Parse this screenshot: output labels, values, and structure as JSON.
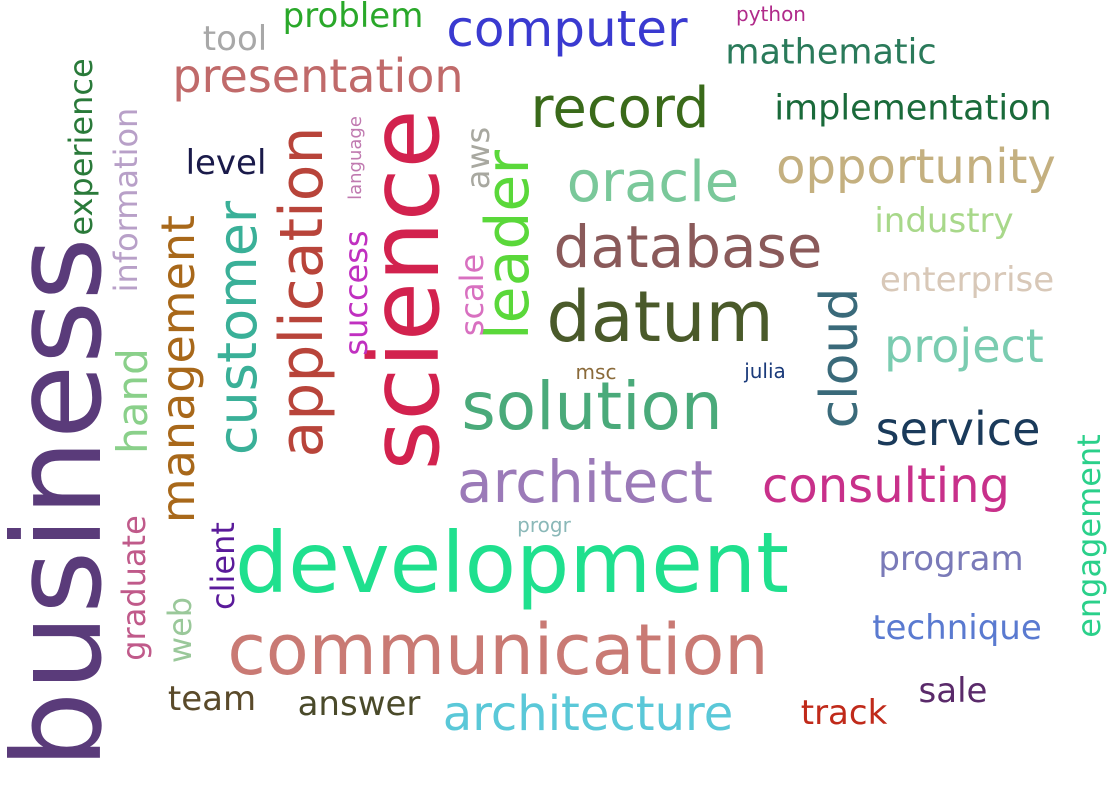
{
  "words": [
    {
      "text": "business",
      "color": "#5a3b7a"
    },
    {
      "text": "science",
      "color": "#d2224e"
    },
    {
      "text": "development",
      "color": "#1fe08e"
    },
    {
      "text": "communication",
      "color": "#c97a74"
    },
    {
      "text": "datum",
      "color": "#4a5a2a"
    },
    {
      "text": "solution",
      "color": "#4aaa7a"
    },
    {
      "text": "architect",
      "color": "#9b7ab8"
    },
    {
      "text": "database",
      "color": "#8a5a5a"
    },
    {
      "text": "leader",
      "color": "#5ad83a"
    },
    {
      "text": "application",
      "color": "#b8443a"
    },
    {
      "text": "customer",
      "color": "#3ab098"
    },
    {
      "text": "record",
      "color": "#3a6a1a"
    },
    {
      "text": "oracle",
      "color": "#7ac89a"
    },
    {
      "text": "cloud",
      "color": "#3a6a7a"
    },
    {
      "text": "consulting",
      "color": "#c8308a"
    },
    {
      "text": "opportunity",
      "color": "#c4b080"
    },
    {
      "text": "architecture",
      "color": "#5ac8d8"
    },
    {
      "text": "management",
      "color": "#a8681a"
    },
    {
      "text": "presentation",
      "color": "#c06a6a"
    },
    {
      "text": "computer",
      "color": "#3a3ad0"
    },
    {
      "text": "project",
      "color": "#7accb0"
    },
    {
      "text": "service",
      "color": "#1a3a5a"
    },
    {
      "text": "hand",
      "color": "#8ad08a"
    },
    {
      "text": "implementation",
      "color": "#1a6a3a"
    },
    {
      "text": "mathematic",
      "color": "#2a7a5a"
    },
    {
      "text": "engagement",
      "color": "#2ad08a"
    },
    {
      "text": "information",
      "color": "#b8a0c8"
    },
    {
      "text": "experience",
      "color": "#2a7a3a"
    },
    {
      "text": "technique",
      "color": "#5a7ad0"
    },
    {
      "text": "program",
      "color": "#7a7ab8"
    },
    {
      "text": "industry",
      "color": "#a8d88a"
    },
    {
      "text": "enterprise",
      "color": "#d8c8b8"
    },
    {
      "text": "success",
      "color": "#c030c0"
    },
    {
      "text": "graduate",
      "color": "#c05a8a"
    },
    {
      "text": "client",
      "color": "#5a1a9a"
    },
    {
      "text": "web",
      "color": "#9ac89a"
    },
    {
      "text": "answer",
      "color": "#4a4a2a"
    },
    {
      "text": "team",
      "color": "#5a4a2a"
    },
    {
      "text": "track",
      "color": "#c02a1a"
    },
    {
      "text": "sale",
      "color": "#5a2a6a"
    },
    {
      "text": "level",
      "color": "#1a1a4a"
    },
    {
      "text": "tool",
      "color": "#a8a8a8"
    },
    {
      "text": "problem",
      "color": "#2aa82a"
    },
    {
      "text": "aws",
      "color": "#a8a8a0"
    },
    {
      "text": "scale",
      "color": "#d870c0"
    },
    {
      "text": "language",
      "color": "#c07ab0"
    },
    {
      "text": "python",
      "color": "#b02a8a"
    },
    {
      "text": "msc",
      "color": "#8a6a3a"
    },
    {
      "text": "julia",
      "color": "#1a3a7a"
    },
    {
      "text": "progr",
      "color": "#8ab8b8"
    }
  ]
}
